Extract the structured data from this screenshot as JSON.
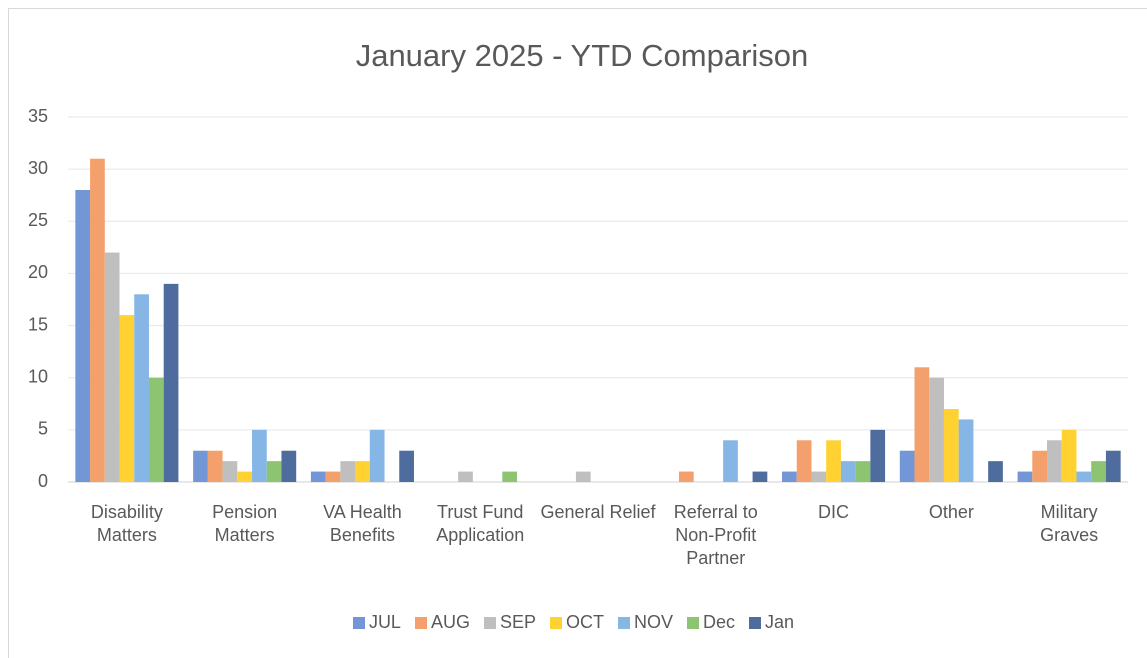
{
  "chart_data": {
    "type": "bar",
    "title": "January 2025 - YTD Comparison",
    "categories": [
      "Disability Matters",
      "Pension Matters",
      "VA Health Benefits",
      "Trust Fund Application",
      "General Relief",
      "Referral to Non-Profit Partner",
      "DIC",
      "Other",
      "Military Graves"
    ],
    "series": [
      {
        "name": "JUL",
        "color": "#7397d6",
        "values": [
          28,
          3,
          1,
          0,
          0,
          0,
          1,
          3,
          1
        ]
      },
      {
        "name": "AUG",
        "color": "#f4a06c",
        "values": [
          31,
          3,
          1,
          0,
          0,
          1,
          4,
          11,
          3
        ]
      },
      {
        "name": "SEP",
        "color": "#bfbfbf",
        "values": [
          22,
          2,
          2,
          1,
          1,
          0,
          1,
          10,
          4
        ]
      },
      {
        "name": "OCT",
        "color": "#ffd231",
        "values": [
          16,
          1,
          2,
          0,
          0,
          0,
          4,
          7,
          5
        ]
      },
      {
        "name": "NOV",
        "color": "#86b6e6",
        "values": [
          18,
          5,
          5,
          0,
          0,
          4,
          2,
          6,
          1
        ]
      },
      {
        "name": "Dec",
        "color": "#8cc472",
        "values": [
          10,
          2,
          0,
          1,
          0,
          0,
          2,
          0,
          2
        ]
      },
      {
        "name": "Jan",
        "color": "#4f6c9f",
        "values": [
          19,
          3,
          3,
          0,
          0,
          1,
          5,
          2,
          3
        ]
      }
    ],
    "ylim": [
      0,
      35
    ],
    "yticks": [
      0,
      5,
      10,
      15,
      20,
      25,
      30,
      35
    ],
    "grid": true,
    "legend": "bottom"
  }
}
